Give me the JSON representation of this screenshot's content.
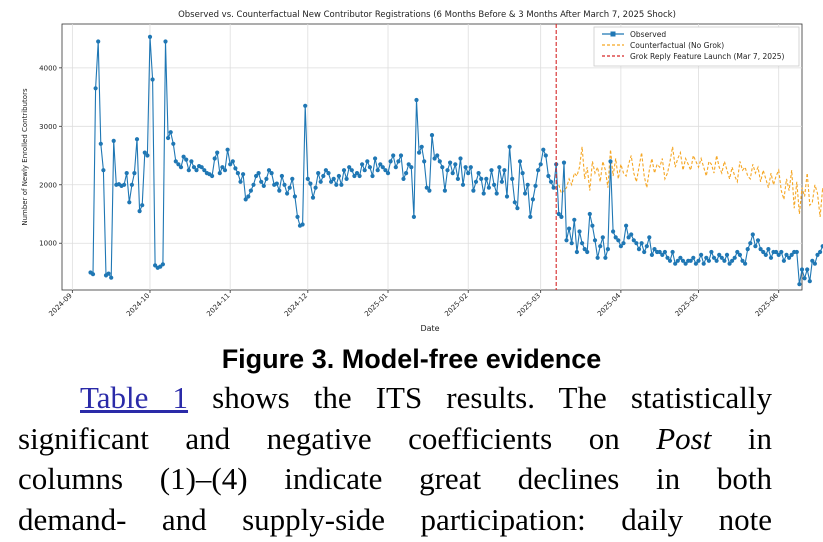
{
  "chart_data": {
    "type": "line",
    "title": "Observed vs. Counterfactual New Contributor Registrations (6 Months Before & 3 Months After March 7, 2025 Shock)",
    "xlabel": "Date",
    "ylabel": "Number of Newly Enrolled Contributors",
    "ylim": [
      200,
      4750
    ],
    "yticks": [
      1000,
      2000,
      3000,
      4000
    ],
    "x_range": [
      "2024-08-28",
      "2025-06-10"
    ],
    "xticks": [
      "2024-09",
      "2024-10",
      "2024-11",
      "2024-12",
      "2025-01",
      "2025-02",
      "2025-03",
      "2025-04",
      "2025-05",
      "2025-06"
    ],
    "grid": true,
    "legend_position": "top-right",
    "shock_date": "2025-03-07",
    "colors": {
      "observed": "#1f77b4",
      "counterfactual": "#f5a623",
      "shock": "#d62728"
    },
    "series": [
      {
        "name": "Observed",
        "style": "solid-marker",
        "start": "2024-09-08",
        "values": [
          500,
          470,
          3650,
          4450,
          2700,
          2250,
          450,
          480,
          410,
          2750,
          2000,
          2010,
          1980,
          2000,
          2200,
          1700,
          2000,
          2200,
          2780,
          1550,
          1650,
          2550,
          2500,
          4530,
          3800,
          620,
          580,
          600,
          640,
          4450,
          2800,
          2900,
          2700,
          2400,
          2350,
          2300,
          2480,
          2430,
          2250,
          2400,
          2300,
          2250,
          2320,
          2300,
          2250,
          2200,
          2180,
          2150,
          2450,
          2550,
          2200,
          2300,
          2250,
          2600,
          2350,
          2400,
          2280,
          2200,
          2050,
          2180,
          1750,
          1800,
          1900,
          2000,
          2150,
          2200,
          2050,
          1980,
          2100,
          2250,
          2200,
          2000,
          2020,
          1900,
          2150,
          2000,
          1850,
          1950,
          2100,
          1800,
          1450,
          1300,
          1320,
          3350,
          2100,
          2020,
          1780,
          1950,
          2200,
          2050,
          2150,
          2250,
          2200,
          2050,
          2100,
          2000,
          2150,
          2000,
          2250,
          2100,
          2300,
          2250,
          2150,
          2200,
          2150,
          2350,
          2250,
          2400,
          2300,
          2150,
          2450,
          2250,
          2350,
          2300,
          2250,
          2200,
          2400,
          2500,
          2300,
          2400,
          2500,
          2100,
          2200,
          2350,
          2300,
          1450,
          3450,
          2550,
          2650,
          2400,
          1950,
          1900,
          2850,
          2450,
          2500,
          2400,
          2300,
          1900,
          2250,
          2380,
          2200,
          2350,
          2100,
          2450,
          2000,
          2300,
          2200,
          2300,
          1900,
          2050,
          2200,
          2100,
          1850,
          2100,
          1950,
          2250,
          2000,
          1850,
          2300,
          2050,
          2250,
          1800,
          2650,
          2100,
          1700,
          1600,
          2400,
          2200,
          1850,
          2000,
          1450,
          1750,
          1980,
          2250,
          2350,
          2600,
          2500,
          2150,
          2050,
          1950,
          2350,
          1500,
          1450,
          2380,
          1050,
          1250,
          1000,
          1400,
          850,
          1200,
          1000,
          900,
          850,
          1500,
          1300,
          1050,
          750,
          950,
          1100,
          750,
          900,
          2400,
          1200,
          1100,
          1050,
          950,
          1000,
          1300,
          1100,
          1150,
          1050,
          1000,
          900,
          1000,
          850,
          950,
          1100,
          800,
          900,
          850,
          850,
          800,
          850,
          750,
          700,
          850,
          650,
          700,
          750,
          700,
          650,
          700,
          700,
          750,
          650,
          700,
          800,
          650,
          750,
          700,
          850,
          750,
          700,
          800,
          750,
          700,
          800,
          650,
          700,
          750,
          850,
          800,
          700,
          650,
          900,
          1000,
          1150,
          950,
          1050,
          900,
          850,
          800,
          900,
          750,
          850,
          850,
          800,
          850,
          700,
          800,
          750,
          800,
          850,
          850,
          300,
          550,
          400,
          550,
          350,
          700,
          650,
          800,
          850,
          950,
          900,
          600
        ]
      },
      {
        "name": "Counterfactual (No Grok)",
        "style": "dashed",
        "start": "2025-03-08",
        "values": [
          2000,
          1850,
          1900,
          1950,
          2100,
          2000,
          2200,
          2150,
          2300,
          2650,
          2100,
          2300,
          1900,
          2400,
          2200,
          2300,
          2050,
          2400,
          2250,
          1950,
          2600,
          2150,
          2450,
          2100,
          2350,
          2200,
          2150,
          2350,
          2500,
          2200,
          2050,
          2300,
          2550,
          2150,
          1950,
          2250,
          2450,
          2200,
          2350,
          2300,
          2450,
          2100,
          2200,
          2400,
          2650,
          2300,
          2450,
          2550,
          2250,
          2450,
          2350,
          2250,
          2500,
          2400,
          2300,
          2450,
          2300,
          2150,
          2400,
          2350,
          2200,
          2500,
          2300,
          2200,
          2400,
          2250,
          2100,
          2300,
          2150,
          2050,
          2400,
          2250,
          2300,
          2150,
          2100,
          2350,
          2200,
          2300,
          2050,
          2250,
          2100,
          1950,
          2200,
          2000,
          2150,
          2250,
          1900,
          1750,
          2100,
          1900,
          2250,
          1600,
          2050,
          1500,
          1950,
          1800,
          2200,
          1650,
          1700,
          2000,
          1850,
          1450,
          1950,
          1700,
          1900,
          1850,
          1550,
          2100,
          1950,
          1250,
          2000,
          2100,
          1800,
          1950,
          2200,
          1750,
          2150,
          2200,
          2650,
          2000,
          1800,
          2200,
          1900,
          2000,
          2150,
          1700,
          1650,
          1900,
          2000,
          1800,
          1950,
          2100,
          1700,
          1650
        ]
      }
    ],
    "legend": [
      {
        "label": "Observed",
        "color": "#1f77b4",
        "style": "solid-marker"
      },
      {
        "label": "Counterfactual (No Grok)",
        "color": "#f5a623",
        "style": "dashed"
      },
      {
        "label": "Grok Reply Feature Launch (Mar 7, 2025)",
        "color": "#d62728",
        "style": "dashed"
      }
    ]
  },
  "caption": "Figure 3. Model-free evidence",
  "paragraph": {
    "link_text": "Table 1",
    "line1_rest": "shows the ITS results. The statistically",
    "line2_a": "significant and negative coefficients on ",
    "line2_italic": "Post",
    "line2_b": " in",
    "line3": "columns (1)–(4) indicate great declines in both",
    "line4": "demand- and supply-side participation: daily note"
  }
}
